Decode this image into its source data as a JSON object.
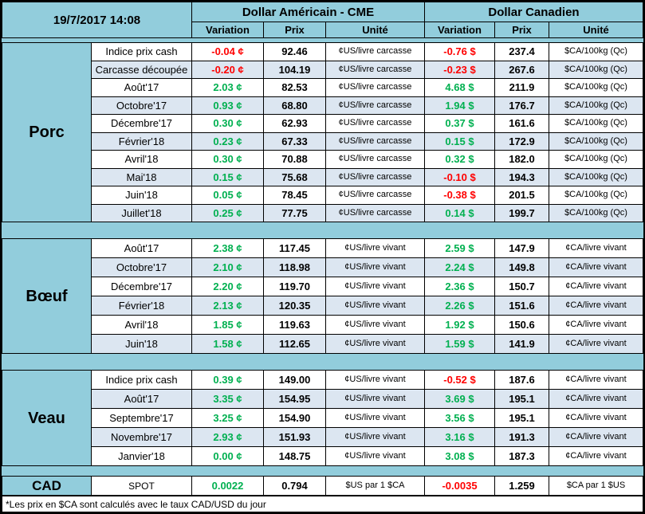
{
  "chart_data": {
    "type": "table",
    "title": "19/7/2017 14:08",
    "column_groups": [
      "Dollar Américain - CME",
      "Dollar Canadien"
    ],
    "columns": [
      "Variation",
      "Prix",
      "Unité"
    ],
    "sections": [
      {
        "id": "porc",
        "name": "Porc",
        "rows": [
          {
            "label": "Indice prix cash",
            "us_var": "-0.04 ¢",
            "us_prix": "92.46",
            "us_unit": "¢US/livre carcasse",
            "ca_var": "-0.76 $",
            "ca_prix": "237.4",
            "ca_unit": "$CA/100kg (Qc)"
          },
          {
            "label": "Carcasse découpée",
            "us_var": "-0.20 ¢",
            "us_prix": "104.19",
            "us_unit": "¢US/livre carcasse",
            "ca_var": "-0.23 $",
            "ca_prix": "267.6",
            "ca_unit": "$CA/100kg (Qc)"
          },
          {
            "label": "Août'17",
            "us_var": "2.03 ¢",
            "us_prix": "82.53",
            "us_unit": "¢US/livre carcasse",
            "ca_var": "4.68 $",
            "ca_prix": "211.9",
            "ca_unit": "$CA/100kg (Qc)"
          },
          {
            "label": "Octobre'17",
            "us_var": "0.93 ¢",
            "us_prix": "68.80",
            "us_unit": "¢US/livre carcasse",
            "ca_var": "1.94 $",
            "ca_prix": "176.7",
            "ca_unit": "$CA/100kg (Qc)"
          },
          {
            "label": "Décembre'17",
            "us_var": "0.30 ¢",
            "us_prix": "62.93",
            "us_unit": "¢US/livre carcasse",
            "ca_var": "0.37 $",
            "ca_prix": "161.6",
            "ca_unit": "$CA/100kg (Qc)"
          },
          {
            "label": "Février'18",
            "us_var": "0.23 ¢",
            "us_prix": "67.33",
            "us_unit": "¢US/livre carcasse",
            "ca_var": "0.15 $",
            "ca_prix": "172.9",
            "ca_unit": "$CA/100kg (Qc)"
          },
          {
            "label": "Avril'18",
            "us_var": "0.30 ¢",
            "us_prix": "70.88",
            "us_unit": "¢US/livre carcasse",
            "ca_var": "0.32 $",
            "ca_prix": "182.0",
            "ca_unit": "$CA/100kg (Qc)"
          },
          {
            "label": "Mai'18",
            "us_var": "0.15 ¢",
            "us_prix": "75.68",
            "us_unit": "¢US/livre carcasse",
            "ca_var": "-0.10 $",
            "ca_prix": "194.3",
            "ca_unit": "$CA/100kg (Qc)"
          },
          {
            "label": "Juin'18",
            "us_var": "0.05 ¢",
            "us_prix": "78.45",
            "us_unit": "¢US/livre carcasse",
            "ca_var": "-0.38 $",
            "ca_prix": "201.5",
            "ca_unit": "$CA/100kg (Qc)"
          },
          {
            "label": "Juillet'18",
            "us_var": "0.25 ¢",
            "us_prix": "77.75",
            "us_unit": "¢US/livre carcasse",
            "ca_var": "0.14 $",
            "ca_prix": "199.7",
            "ca_unit": "$CA/100kg (Qc)"
          }
        ]
      },
      {
        "id": "boeuf",
        "name": "Bœuf",
        "rows": [
          {
            "label": "Août'17",
            "us_var": "2.38 ¢",
            "us_prix": "117.45",
            "us_unit": "¢US/livre vivant",
            "ca_var": "2.59 $",
            "ca_prix": "147.9",
            "ca_unit": "¢CA/livre vivant"
          },
          {
            "label": "Octobre'17",
            "us_var": "2.10 ¢",
            "us_prix": "118.98",
            "us_unit": "¢US/livre vivant",
            "ca_var": "2.24 $",
            "ca_prix": "149.8",
            "ca_unit": "¢CA/livre vivant"
          },
          {
            "label": "Décembre'17",
            "us_var": "2.20 ¢",
            "us_prix": "119.70",
            "us_unit": "¢US/livre vivant",
            "ca_var": "2.36 $",
            "ca_prix": "150.7",
            "ca_unit": "¢CA/livre vivant"
          },
          {
            "label": "Février'18",
            "us_var": "2.13 ¢",
            "us_prix": "120.35",
            "us_unit": "¢US/livre vivant",
            "ca_var": "2.26 $",
            "ca_prix": "151.6",
            "ca_unit": "¢CA/livre vivant"
          },
          {
            "label": "Avril'18",
            "us_var": "1.85 ¢",
            "us_prix": "119.63",
            "us_unit": "¢US/livre vivant",
            "ca_var": "1.92 $",
            "ca_prix": "150.6",
            "ca_unit": "¢CA/livre vivant"
          },
          {
            "label": "Juin'18",
            "us_var": "1.58 ¢",
            "us_prix": "112.65",
            "us_unit": "¢US/livre vivant",
            "ca_var": "1.59 $",
            "ca_prix": "141.9",
            "ca_unit": "¢CA/livre vivant"
          }
        ]
      },
      {
        "id": "veau",
        "name": "Veau",
        "rows": [
          {
            "label": "Indice prix cash",
            "us_var": "0.39 ¢",
            "us_prix": "149.00",
            "us_unit": "¢US/livre vivant",
            "ca_var": "-0.52 $",
            "ca_prix": "187.6",
            "ca_unit": "¢CA/livre vivant"
          },
          {
            "label": "Août'17",
            "us_var": "3.35 ¢",
            "us_prix": "154.95",
            "us_unit": "¢US/livre vivant",
            "ca_var": "3.69 $",
            "ca_prix": "195.1",
            "ca_unit": "¢CA/livre vivant"
          },
          {
            "label": "Septembre'17",
            "us_var": "3.25 ¢",
            "us_prix": "154.90",
            "us_unit": "¢US/livre vivant",
            "ca_var": "3.56 $",
            "ca_prix": "195.1",
            "ca_unit": "¢CA/livre vivant"
          },
          {
            "label": "Novembre'17",
            "us_var": "2.93 ¢",
            "us_prix": "151.93",
            "us_unit": "¢US/livre vivant",
            "ca_var": "3.16 $",
            "ca_prix": "191.3",
            "ca_unit": "¢CA/livre vivant"
          },
          {
            "label": "Janvier'18",
            "us_var": "0.00 ¢",
            "us_prix": "148.75",
            "us_unit": "¢US/livre vivant",
            "ca_var": "3.08 $",
            "ca_prix": "187.3",
            "ca_unit": "¢CA/livre vivant"
          }
        ]
      }
    ],
    "spot": {
      "name": "CAD",
      "label": "SPOT",
      "us_var": "0.0022",
      "us_prix": "0.794",
      "us_unit": "$US par 1 $CA",
      "ca_var": "-0.0035",
      "ca_prix": "1.259",
      "ca_unit": "$CA par 1 $US"
    },
    "footnote": "*Les  prix en $CA sont calculés avec le taux CAD/USD du jour"
  },
  "colors": {
    "positive": "#00B050",
    "negative": "#FF0000",
    "header_bg": "#92CDDC",
    "alt_row_bg": "#DCE6F1",
    "row_bg": "#FFFFFF",
    "border": "#000000"
  }
}
